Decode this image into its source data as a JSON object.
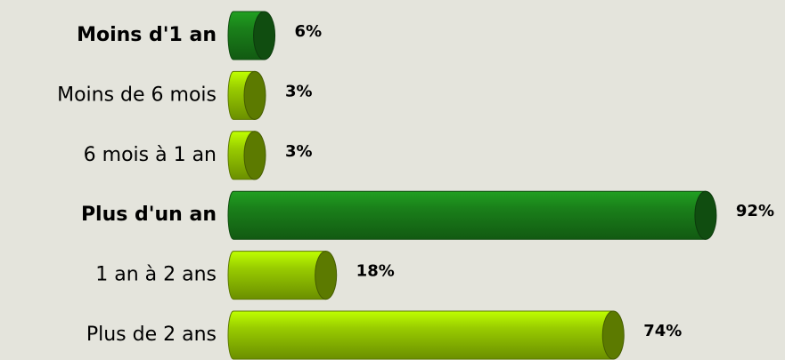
{
  "chart_data": {
    "type": "bar",
    "categories": [
      "Moins d'1 an",
      "Moins de 6 mois",
      "6 mois à 1 an",
      "Plus d'un an",
      "1 an à 2 ans",
      "Plus de 2 ans"
    ],
    "bold": [
      true,
      false,
      false,
      true,
      false,
      false
    ],
    "values": [
      6,
      3,
      3,
      92,
      18,
      74
    ],
    "value_labels": [
      "6%",
      "3%",
      "3%",
      "92%",
      "18%",
      "74%"
    ],
    "colors": [
      "#1a801a",
      "#99cc00",
      "#99cc00",
      "#1a801a",
      "#99cc00",
      "#99cc00"
    ],
    "xlim": [
      0,
      100
    ]
  }
}
